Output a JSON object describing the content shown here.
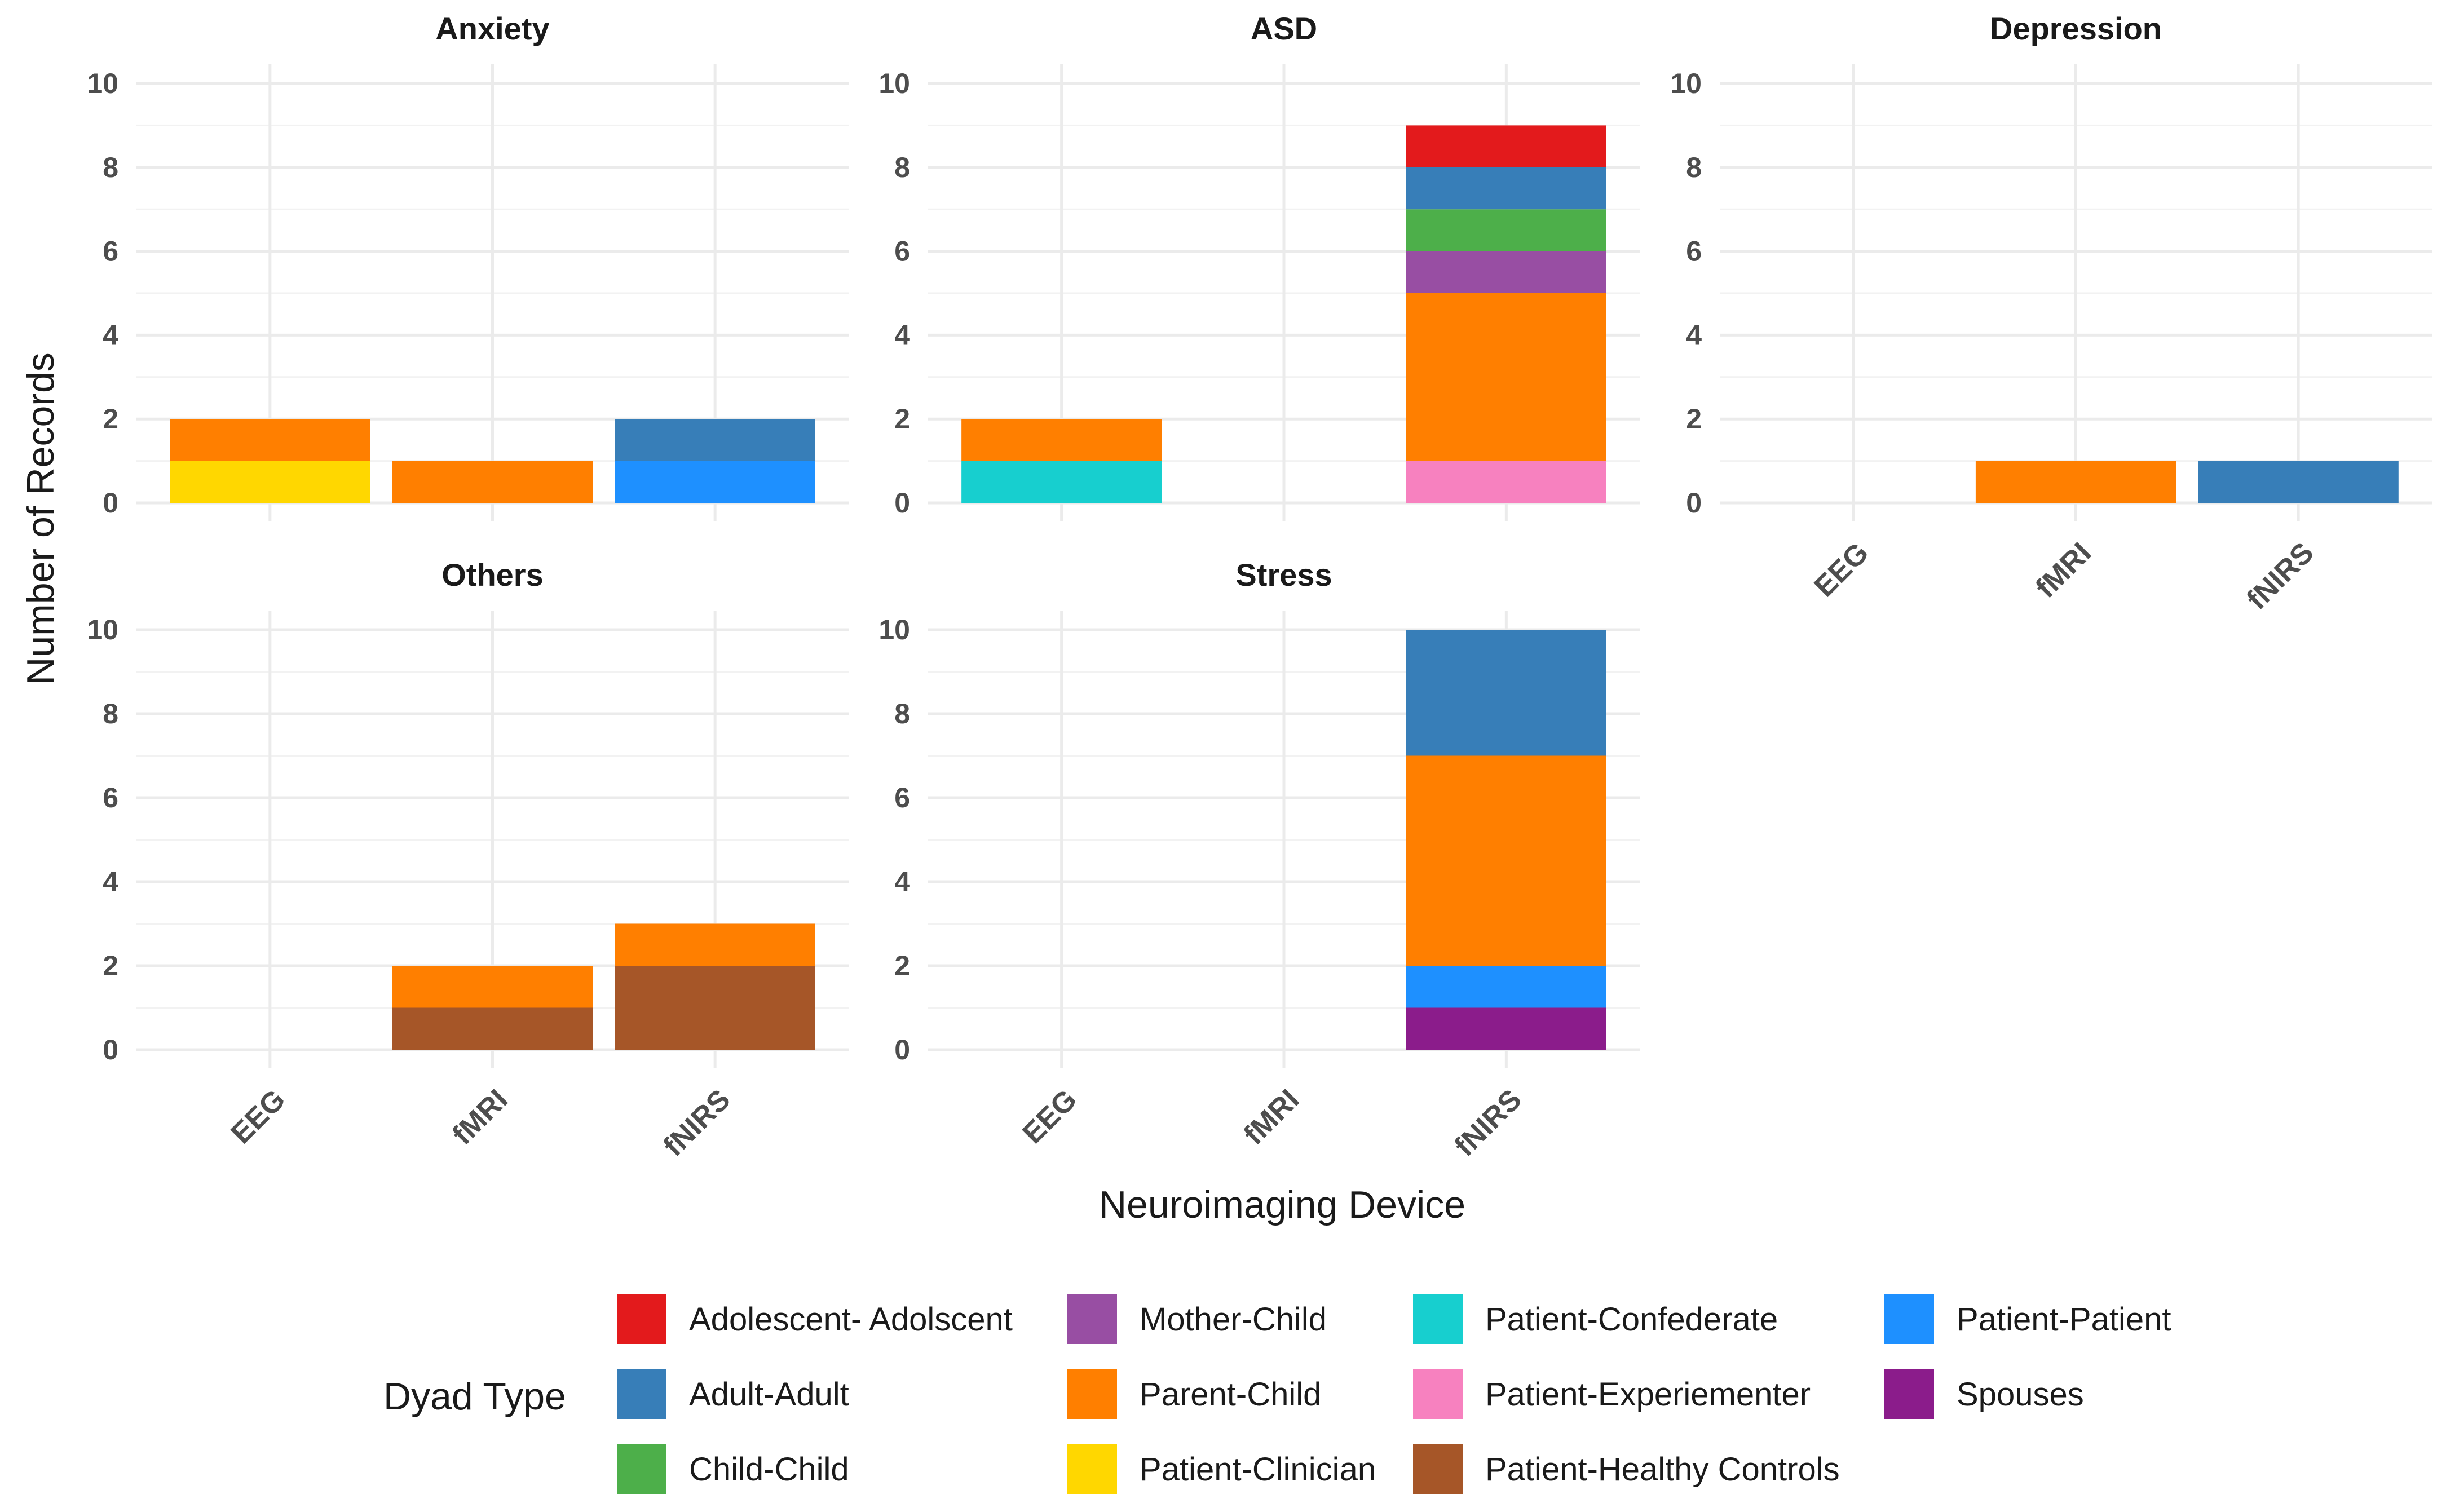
{
  "chart_data": {
    "type": "bar",
    "stacked": true,
    "xlabel": "Neuroimaging Device",
    "ylabel": "Number of Records",
    "categories": [
      "EEG",
      "fMRI",
      "fNIRS"
    ],
    "ylim": [
      0,
      10
    ],
    "yticks": [
      0,
      2,
      4,
      6,
      8,
      10
    ],
    "legend_title": "Dyad Type",
    "legend_placement": "bottom",
    "dyad_types": [
      {
        "name": "Adolescent- Adolscent",
        "color": "#e31a1c"
      },
      {
        "name": "Adult-Adult",
        "color": "#377eb8"
      },
      {
        "name": "Child-Child",
        "color": "#4daf4a"
      },
      {
        "name": "Mother-Child",
        "color": "#984ea3"
      },
      {
        "name": "Parent-Child",
        "color": "#ff7f00"
      },
      {
        "name": "Patient-Clinician",
        "color": "#ffd700"
      },
      {
        "name": "Patient-Confederate",
        "color": "#17cfcf"
      },
      {
        "name": "Patient-Experiementer",
        "color": "#f781bf"
      },
      {
        "name": "Patient-Healthy Controls",
        "color": "#a65628"
      },
      {
        "name": "Patient-Patient",
        "color": "#1e90ff"
      },
      {
        "name": "Spouses",
        "color": "#8b1c8b"
      }
    ],
    "facets": [
      {
        "title": "Anxiety",
        "bars": {
          "EEG": [
            {
              "type": "Patient-Clinician",
              "value": 1
            },
            {
              "type": "Parent-Child",
              "value": 1
            }
          ],
          "fMRI": [
            {
              "type": "Parent-Child",
              "value": 1
            }
          ],
          "fNIRS": [
            {
              "type": "Patient-Patient",
              "value": 1
            },
            {
              "type": "Adult-Adult",
              "value": 1
            }
          ]
        }
      },
      {
        "title": "ASD",
        "bars": {
          "EEG": [
            {
              "type": "Patient-Confederate",
              "value": 1
            },
            {
              "type": "Parent-Child",
              "value": 1
            }
          ],
          "fMRI": [],
          "fNIRS": [
            {
              "type": "Patient-Experiementer",
              "value": 1
            },
            {
              "type": "Parent-Child",
              "value": 4
            },
            {
              "type": "Mother-Child",
              "value": 1
            },
            {
              "type": "Child-Child",
              "value": 1
            },
            {
              "type": "Adult-Adult",
              "value": 1
            },
            {
              "type": "Adolescent- Adolscent",
              "value": 1
            }
          ]
        }
      },
      {
        "title": "Depression",
        "bars": {
          "EEG": [],
          "fMRI": [
            {
              "type": "Parent-Child",
              "value": 1
            }
          ],
          "fNIRS": [
            {
              "type": "Adult-Adult",
              "value": 1
            }
          ]
        }
      },
      {
        "title": "Others",
        "bars": {
          "EEG": [],
          "fMRI": [
            {
              "type": "Patient-Healthy Controls",
              "value": 1
            },
            {
              "type": "Parent-Child",
              "value": 1
            }
          ],
          "fNIRS": [
            {
              "type": "Patient-Healthy Controls",
              "value": 2
            },
            {
              "type": "Parent-Child",
              "value": 1
            }
          ]
        }
      },
      {
        "title": "Stress",
        "bars": {
          "EEG": [],
          "fMRI": [],
          "fNIRS": [
            {
              "type": "Spouses",
              "value": 1
            },
            {
              "type": "Patient-Patient",
              "value": 1
            },
            {
              "type": "Parent-Child",
              "value": 5
            },
            {
              "type": "Adult-Adult",
              "value": 3
            }
          ]
        }
      }
    ]
  }
}
